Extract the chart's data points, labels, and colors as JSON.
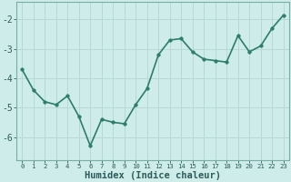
{
  "x": [
    0,
    1,
    2,
    3,
    4,
    5,
    6,
    7,
    8,
    9,
    10,
    11,
    12,
    13,
    14,
    15,
    16,
    17,
    18,
    19,
    20,
    21,
    22,
    23
  ],
  "y": [
    -3.7,
    -4.4,
    -4.8,
    -4.9,
    -4.6,
    -5.3,
    -6.3,
    -5.4,
    -5.5,
    -5.55,
    -4.9,
    -4.35,
    -3.2,
    -2.7,
    -2.65,
    -3.1,
    -3.35,
    -3.4,
    -3.45,
    -2.55,
    -3.1,
    -2.9,
    -2.3,
    -1.85
  ],
  "line_color": "#2d7d6d",
  "marker": "o",
  "marker_size": 2.5,
  "bg_color": "#cdecea",
  "grid_color": "#b8d8d4",
  "tick_color": "#2d5c5a",
  "xlabel": "Humidex (Indice chaleur)",
  "xlabel_fontsize": 7.5,
  "ylim": [
    -6.8,
    -1.4
  ],
  "xlim": [
    -0.5,
    23.5
  ],
  "yticks": [
    -6,
    -5,
    -4,
    -3,
    -2
  ],
  "ytick_labels": [
    "-6",
    "-5",
    "-4",
    "-3",
    "-2"
  ],
  "xtick_labels": [
    "0",
    "1",
    "2",
    "3",
    "4",
    "5",
    "6",
    "7",
    "8",
    "9",
    "10",
    "11",
    "12",
    "13",
    "14",
    "15",
    "16",
    "17",
    "18",
    "19",
    "20",
    "21",
    "22",
    "23"
  ],
  "line_width": 1.2
}
